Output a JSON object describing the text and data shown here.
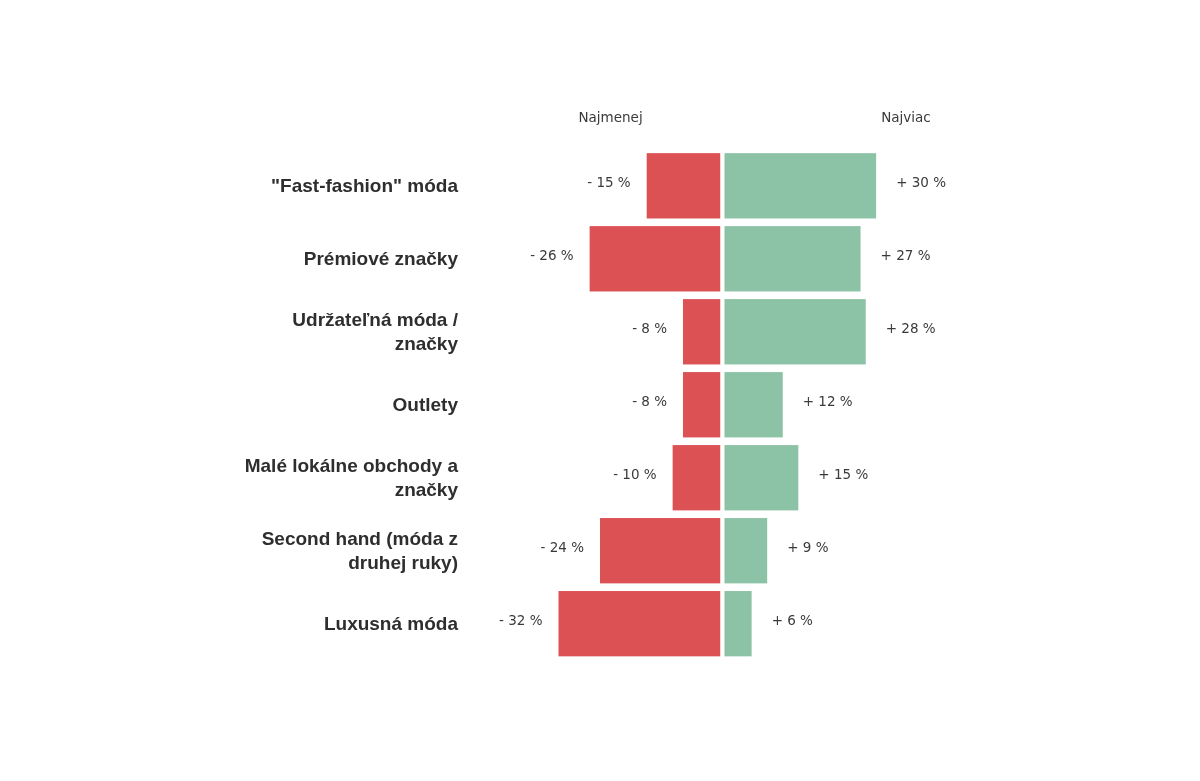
{
  "chart_data": {
    "type": "bar",
    "orientation": "horizontal",
    "stacked": true,
    "tick_labels": "y",
    "categories": [
      "\"Fast-fashion\" móda",
      "Prémiové značky",
      "Udržateľná móda / značky",
      "Outlety",
      "Malé lokálne obchody a značky",
      "Second hand (móda z druhej ruky)",
      "Luxusná móda"
    ],
    "series": [
      {
        "name": "Najmenej",
        "color": "#dc5154",
        "values": [
          -15,
          -26,
          -8,
          -8,
          -10,
          -24,
          -32
        ],
        "value_labels": [
          "- 15 %",
          "- 26 %",
          "- 8 %",
          "- 8 %",
          "- 10 %",
          "- 24 %",
          "- 32 %"
        ]
      },
      {
        "name": "Najviac",
        "color": "#8cc3a6",
        "values": [
          30,
          27,
          28,
          12,
          15,
          9,
          6
        ],
        "value_labels": [
          "+ 30 %",
          "+ 27 %",
          "+ 28 %",
          "+ 12 %",
          "+ 15 %",
          "+ 9 %",
          "+ 6 %"
        ]
      }
    ]
  }
}
